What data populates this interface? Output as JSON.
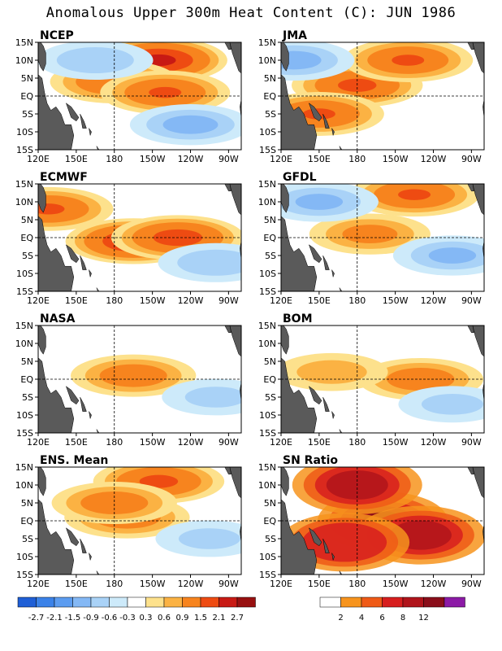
{
  "title": "Anomalous Upper 300m Heat Content (C): JUN 1986",
  "colors": {
    "land": "#5a5a5a",
    "neg": [
      "#1f5fd6",
      "#3b82e8",
      "#5c9cf0",
      "#84b8f5",
      "#a9d2f7",
      "#cdeafa"
    ],
    "pos": [
      "#fde18c",
      "#fbb243",
      "#f7841e",
      "#ee4b12",
      "#c81a14",
      "#981010",
      "#7a0a12"
    ],
    "ratio": [
      "#ffffff",
      "#f7941d",
      "#ef5a16",
      "#d71e1e",
      "#b0141b",
      "#8a0e1a",
      "#8c1aa6"
    ]
  },
  "panels": [
    {
      "label": "NCEP"
    },
    {
      "label": "JMA"
    },
    {
      "label": "ECMWF"
    },
    {
      "label": "GFDL"
    },
    {
      "label": "NASA"
    },
    {
      "label": "BOM"
    },
    {
      "label": "ENS. Mean"
    },
    {
      "label": "SN Ratio"
    }
  ],
  "axes": {
    "x_ticks": [
      "120E",
      "150E",
      "180",
      "150W",
      "120W",
      "90W"
    ],
    "y_ticks": [
      "15N",
      "10N",
      "5N",
      "EQ",
      "5S",
      "10S",
      "15S"
    ]
  },
  "legend_left": {
    "labels": [
      "-2.7",
      "-2.1",
      "-1.5",
      "-0.9",
      "-0.6",
      "-0.3",
      "0.3",
      "0.6",
      "0.9",
      "1.5",
      "2.1",
      "2.7"
    ]
  },
  "legend_right": {
    "labels": [
      "2",
      "4",
      "6",
      "8",
      "12"
    ]
  },
  "chart_data": [
    {
      "type": "heatmap",
      "title": "NCEP",
      "xlim": [
        "120E",
        "80W"
      ],
      "ylim": [
        "15S",
        "15N"
      ],
      "units": "C",
      "features": [
        {
          "lon": 215,
          "lat": 10,
          "value": 2.3,
          "sign": "warm"
        },
        {
          "lon": 180,
          "lat": 4,
          "value": 1.4,
          "sign": "warm"
        },
        {
          "lon": 220,
          "lat": 1,
          "value": 1.5,
          "sign": "warm"
        },
        {
          "lon": 165,
          "lat": 10,
          "value": -0.8,
          "sign": "cold"
        },
        {
          "lon": 240,
          "lat": -8,
          "value": -1.0,
          "sign": "cold"
        }
      ]
    },
    {
      "type": "heatmap",
      "title": "JMA",
      "xlim": [
        "120E",
        "80W"
      ],
      "ylim": [
        "15S",
        "15N"
      ],
      "units": "C",
      "features": [
        {
          "lon": 180,
          "lat": 3,
          "value": 1.6,
          "sign": "warm"
        },
        {
          "lon": 220,
          "lat": 10,
          "value": 1.5,
          "sign": "warm"
        },
        {
          "lon": 150,
          "lat": -5,
          "value": 1.5,
          "sign": "warm"
        },
        {
          "lon": 130,
          "lat": 10,
          "value": -1.0,
          "sign": "cold"
        }
      ]
    },
    {
      "type": "heatmap",
      "title": "ECMWF",
      "xlim": [
        "120E",
        "80W"
      ],
      "ylim": [
        "15S",
        "15N"
      ],
      "units": "C",
      "features": [
        {
          "lon": 195,
          "lat": -1,
          "value": 2.1,
          "sign": "warm"
        },
        {
          "lon": 230,
          "lat": 0,
          "value": 1.8,
          "sign": "warm"
        },
        {
          "lon": 128,
          "lat": 8,
          "value": 1.5,
          "sign": "warm"
        },
        {
          "lon": 260,
          "lat": -7,
          "value": -0.8,
          "sign": "cold"
        }
      ]
    },
    {
      "type": "heatmap",
      "title": "GFDL",
      "xlim": [
        "120E",
        "80W"
      ],
      "ylim": [
        "15S",
        "15N"
      ],
      "units": "C",
      "features": [
        {
          "lon": 190,
          "lat": 1,
          "value": 1.0,
          "sign": "warm"
        },
        {
          "lon": 225,
          "lat": 12,
          "value": 1.5,
          "sign": "warm"
        },
        {
          "lon": 150,
          "lat": 10,
          "value": -0.9,
          "sign": "cold"
        },
        {
          "lon": 255,
          "lat": -5,
          "value": -0.9,
          "sign": "cold"
        }
      ]
    },
    {
      "type": "heatmap",
      "title": "NASA",
      "xlim": [
        "120E",
        "80W"
      ],
      "ylim": [
        "15S",
        "15N"
      ],
      "units": "C",
      "features": [
        {
          "lon": 195,
          "lat": 1,
          "value": 1.2,
          "sign": "warm"
        },
        {
          "lon": 260,
          "lat": -5,
          "value": -0.6,
          "sign": "cold"
        }
      ]
    },
    {
      "type": "heatmap",
      "title": "BOM",
      "xlim": [
        "120E",
        "80W"
      ],
      "ylim": [
        "15S",
        "15N"
      ],
      "units": "C",
      "features": [
        {
          "lon": 230,
          "lat": 0,
          "value": 1.2,
          "sign": "warm"
        },
        {
          "lon": 160,
          "lat": 2,
          "value": 0.7,
          "sign": "warm"
        },
        {
          "lon": 255,
          "lat": -7,
          "value": -0.6,
          "sign": "cold"
        }
      ]
    },
    {
      "type": "heatmap",
      "title": "ENS. Mean",
      "xlim": [
        "120E",
        "80W"
      ],
      "ylim": [
        "15S",
        "15N"
      ],
      "units": "C",
      "features": [
        {
          "lon": 215,
          "lat": 11,
          "value": 1.6,
          "sign": "warm"
        },
        {
          "lon": 190,
          "lat": 1,
          "value": 1.2,
          "sign": "warm"
        },
        {
          "lon": 180,
          "lat": 5,
          "value": 1.2,
          "sign": "warm"
        },
        {
          "lon": 255,
          "lat": -5,
          "value": -0.6,
          "sign": "cold"
        }
      ]
    },
    {
      "type": "heatmap",
      "title": "SN Ratio",
      "xlim": [
        "120E",
        "80W"
      ],
      "ylim": [
        "15S",
        "15N"
      ],
      "features": [
        {
          "lon": 200,
          "lat": 0,
          "value": 12
        },
        {
          "lon": 180,
          "lat": 10,
          "value": 10
        },
        {
          "lon": 230,
          "lat": -4,
          "value": 10
        },
        {
          "lon": 170,
          "lat": -6,
          "value": 6
        }
      ]
    }
  ]
}
